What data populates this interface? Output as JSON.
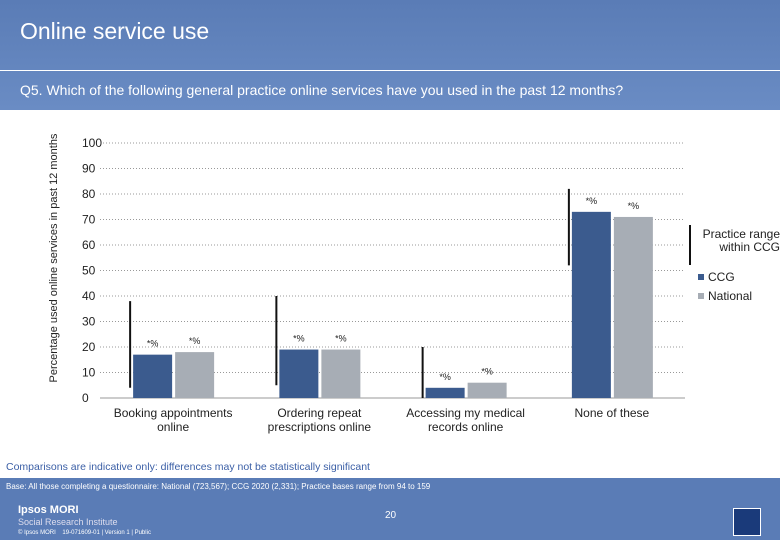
{
  "header": {
    "title": "Online service use"
  },
  "chart_data": {
    "type": "bar",
    "title": "Q5. Which of the following general practice online services have you used in the past 12 months?",
    "y_label": "Percentage used online services in past 12 months",
    "categories": [
      "Booking appointments online",
      "Ordering repeat prescriptions online",
      "Accessing my medical records online",
      "None of these"
    ],
    "series": [
      {
        "name": "CCG",
        "color": "#3b5b8e",
        "values": [
          17,
          19,
          4,
          73
        ],
        "value_labels": [
          "*%",
          "*%",
          "*%",
          "*%"
        ]
      },
      {
        "name": "National",
        "color": "#a7adb5",
        "values": [
          18,
          19,
          6,
          71
        ],
        "value_labels": [
          "*%",
          "*%",
          "*%",
          "*%"
        ]
      }
    ],
    "range": {
      "name": "Practice range within CCG",
      "color": "#111111",
      "low": [
        4,
        5,
        0,
        52
      ],
      "high": [
        38,
        40,
        20,
        82
      ]
    },
    "ylim": [
      0,
      100
    ],
    "yticks": [
      0,
      10,
      20,
      30,
      40,
      50,
      60,
      70,
      80,
      90,
      100
    ],
    "grid": true
  },
  "footer": {
    "note": "Comparisons are indicative only: differences may not be statistically significant",
    "base": "Base: All those completing a questionnaire: National (723,567); CCG 2020 (2,331); Practice bases range from 94 to 159",
    "page": "20",
    "logo": "Ipsos MORI",
    "institute": "Social Research Institute",
    "credit": "© Ipsos MORI    19-071609-01 | Version 1 | Public"
  }
}
